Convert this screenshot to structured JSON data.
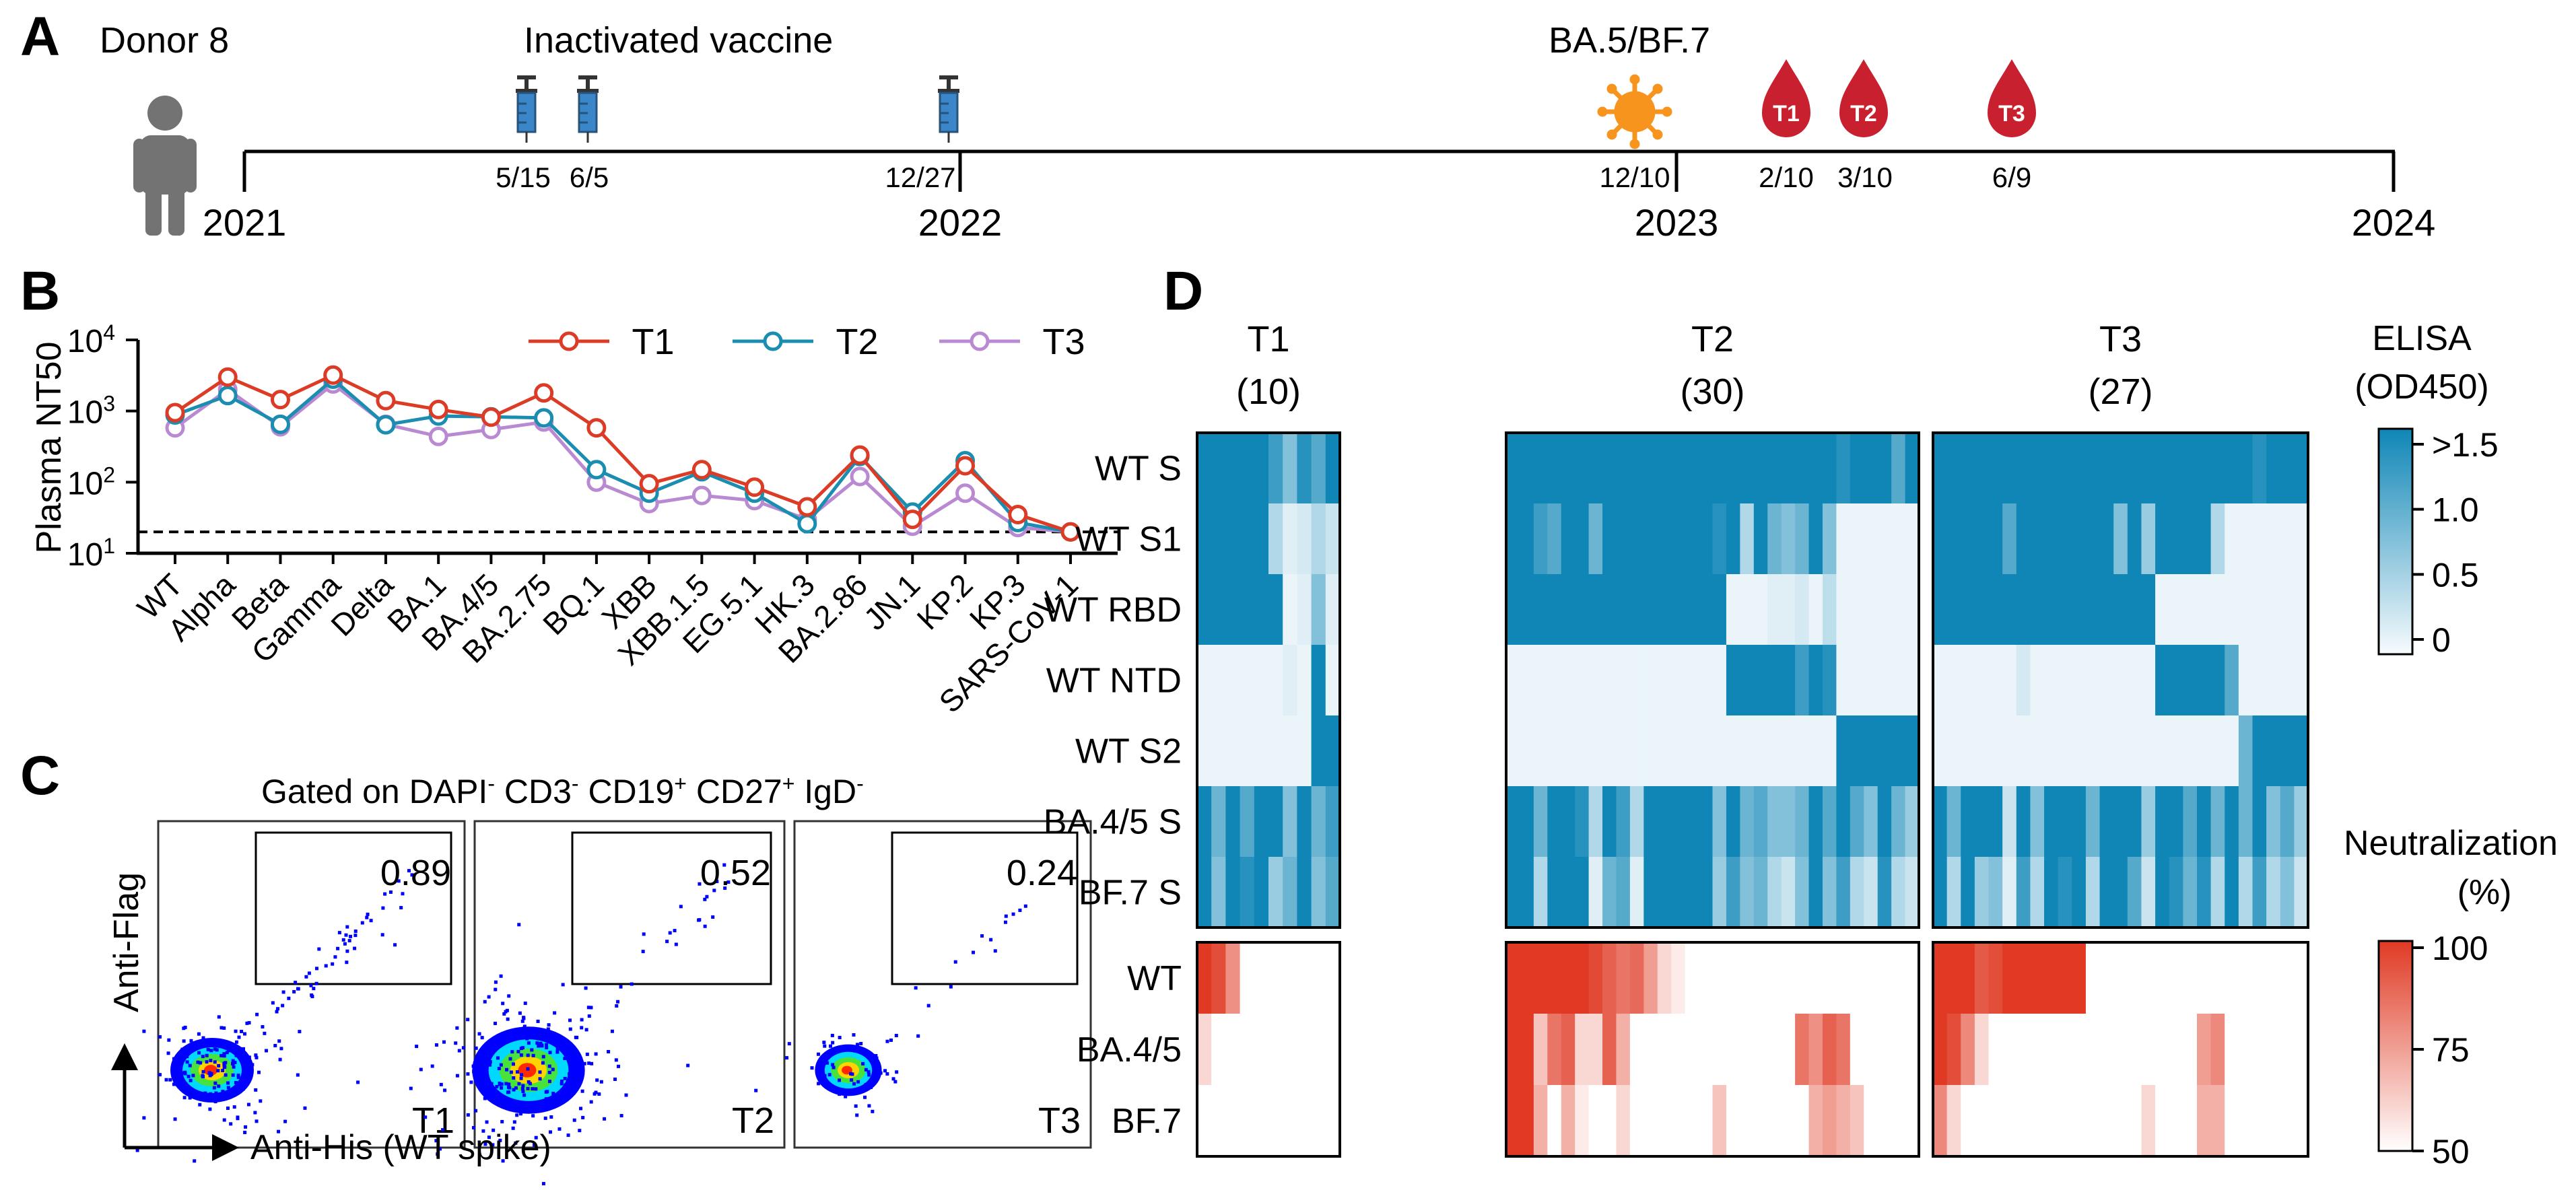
{
  "panels": {
    "a": "A",
    "b": "B",
    "c": "C",
    "d": "D"
  },
  "timeline": {
    "donor_label": "Donor 8",
    "vaccine_label": "Inactivated vaccine",
    "infection_label": "BA.5/BF.7",
    "years": [
      "2021",
      "2022",
      "2023",
      "2024"
    ],
    "vaccine_dates": [
      "5/15",
      "6/5",
      "12/27"
    ],
    "infection_date": "12/10",
    "blood_draws": [
      {
        "label": "T1",
        "date": "2/10"
      },
      {
        "label": "T2",
        "date": "3/10"
      },
      {
        "label": "T3",
        "date": "6/9"
      }
    ],
    "icons": {
      "person": "person-icon",
      "syringe": "syringe-icon",
      "virus": "virus-icon",
      "blood": "blood-drop-icon"
    },
    "colors": {
      "syringe": "#3a86c8",
      "virus": "#f7941d",
      "blood": "#c8202f"
    }
  },
  "chart_data": {
    "type": "line",
    "ylabel": "Plasma NT50",
    "yscale": "log",
    "ylim": [
      10,
      10000
    ],
    "ytick_bases": [
      "10",
      "10",
      "10",
      "10"
    ],
    "ytick_exps": [
      "1",
      "2",
      "3",
      "4"
    ],
    "detection_limit": 20,
    "categories": [
      "WT",
      "Alpha",
      "Beta",
      "Gamma",
      "Delta",
      "BA.1",
      "BA.4/5",
      "BA.2.75",
      "BQ.1",
      "XBB",
      "XBB.1.5",
      "EG.5.1",
      "HK.3",
      "BA.2.86",
      "JN.1",
      "KP.2",
      "KP.3",
      "SARS-CoV-1"
    ],
    "series": [
      {
        "name": "T1",
        "color": "#dc3b26",
        "values": [
          950,
          3000,
          1450,
          3200,
          1400,
          1050,
          820,
          1800,
          580,
          95,
          150,
          85,
          45,
          240,
          30,
          170,
          35,
          20
        ]
      },
      {
        "name": "T2",
        "color": "#1a8db0",
        "values": [
          880,
          1650,
          650,
          2800,
          640,
          850,
          830,
          800,
          150,
          70,
          140,
          70,
          26,
          230,
          38,
          200,
          27,
          20
        ]
      },
      {
        "name": "T3",
        "color": "#b98ad2",
        "values": [
          580,
          2000,
          600,
          2400,
          650,
          440,
          550,
          700,
          100,
          50,
          65,
          55,
          30,
          120,
          24,
          70,
          23,
          20
        ]
      }
    ]
  },
  "flow": {
    "title_parts": [
      "Gated on DAPI",
      "-",
      " CD3",
      "-",
      " CD19",
      "+",
      " CD27",
      "+",
      " IgD",
      "-"
    ],
    "ylabel": "Anti-Flag",
    "xlabel": "Anti-His (WT spike)",
    "plots": [
      {
        "label": "T1",
        "value": "0.89"
      },
      {
        "label": "T2",
        "value": "0.52"
      },
      {
        "label": "T3",
        "value": "0.24"
      }
    ]
  },
  "heatmap": {
    "groups": [
      {
        "label": "T1",
        "count": "(10)"
      },
      {
        "label": "T2",
        "count": "(30)"
      },
      {
        "label": "T3",
        "count": "(27)"
      }
    ],
    "elisa_rows": [
      "WT S",
      "WT S1",
      "WT RBD",
      "WT NTD",
      "WT S2",
      "BA.4/5 S",
      "BF.7 S"
    ],
    "neut_rows": [
      "WT",
      "BA.4/5",
      "BF.7"
    ],
    "elisa_legend": {
      "title1": "ELISA",
      "title2": "(OD450)",
      "ticks": [
        ">1.5",
        "1.0",
        "0.5",
        "0"
      ]
    },
    "neut_legend": {
      "title1": "Neutralization",
      "title2": "(%)",
      "ticks": [
        "100",
        "75",
        "50"
      ]
    },
    "colors": {
      "elisa_high": "#0f86b6",
      "elisa_low": "#f7fbfd",
      "neut_high": "#e03a24",
      "neut_low": "#ffffff"
    },
    "elisa_values": {
      "T1": [
        [
          1,
          1,
          1,
          1,
          1,
          0.8,
          0.5,
          0.9,
          0.7,
          1
        ],
        [
          1,
          1,
          1,
          1,
          1,
          0.3,
          0.1,
          0.15,
          0.3,
          0.2
        ],
        [
          1,
          1,
          1,
          1,
          1,
          1,
          0.05,
          0.1,
          0.5,
          0.1
        ],
        [
          0.05,
          0.05,
          0.05,
          0.05,
          0.05,
          0.05,
          0.1,
          0.05,
          1,
          0.05
        ],
        [
          0.05,
          0.05,
          0.05,
          0.05,
          0.05,
          0.05,
          0.05,
          0.05,
          1,
          1
        ],
        [
          1,
          0.6,
          1,
          0.7,
          1,
          1,
          0.5,
          1,
          0.6,
          0.8
        ],
        [
          1,
          0.5,
          1,
          0.9,
          1,
          0.4,
          0.6,
          1,
          0.5,
          0.7
        ]
      ],
      "T2": [
        [
          1,
          1,
          1,
          1,
          1,
          1,
          1,
          1,
          1,
          1,
          1,
          1,
          1,
          1,
          1,
          1,
          1,
          1,
          1,
          1,
          1,
          1,
          1,
          1,
          0.9,
          1,
          1,
          1,
          0.7,
          1
        ],
        [
          1,
          1,
          0.8,
          0.7,
          1,
          1,
          0.6,
          1,
          1,
          1,
          1,
          1,
          1,
          1,
          1,
          0.9,
          1,
          0.3,
          1,
          0.6,
          0.5,
          0.6,
          1,
          0.5,
          0.05,
          0.05,
          0.05,
          0.05,
          0.05,
          0.05
        ],
        [
          1,
          1,
          1,
          1,
          1,
          1,
          1,
          1,
          1,
          1,
          1,
          1,
          1,
          1,
          1,
          1,
          0.05,
          0.05,
          0.05,
          0.1,
          0.1,
          0.15,
          0.05,
          0.25,
          0.05,
          0.05,
          0.05,
          0.05,
          0.05,
          0.05
        ],
        [
          0.05,
          0.05,
          0.05,
          0.05,
          0.05,
          0.05,
          0.05,
          0.05,
          0.05,
          0.05,
          0.05,
          0.05,
          0.05,
          0.05,
          0.05,
          0.05,
          1,
          1,
          1,
          1,
          1,
          0.8,
          1,
          0.9,
          0.05,
          0.05,
          0.05,
          0.05,
          0.05,
          0.05
        ],
        [
          0.05,
          0.05,
          0.05,
          0.05,
          0.05,
          0.05,
          0.05,
          0.05,
          0.05,
          0.05,
          0.05,
          0.05,
          0.05,
          0.05,
          0.05,
          0.05,
          0.05,
          0.05,
          0.05,
          0.05,
          0.05,
          0.05,
          0.05,
          0.05,
          1,
          1,
          1,
          1,
          1,
          1
        ],
        [
          1,
          1,
          0.6,
          1,
          1,
          0.9,
          0.3,
          1,
          0.8,
          0.3,
          1,
          1,
          1,
          1,
          1,
          0.5,
          1,
          0.6,
          0.7,
          0.5,
          0.5,
          0.6,
          1,
          0.7,
          1,
          0.7,
          0.5,
          1,
          0.6,
          0.4
        ],
        [
          1,
          1,
          0.3,
          1,
          1,
          1,
          0.1,
          0.6,
          0.7,
          0.1,
          1,
          1,
          1,
          1,
          1,
          0.4,
          0.8,
          0.5,
          0.6,
          0.3,
          0.2,
          0.5,
          1,
          0.5,
          0.8,
          0.3,
          0.2,
          0.9,
          0.3,
          0.2
        ]
      ],
      "T3": [
        [
          1,
          1,
          1,
          1,
          1,
          1,
          1,
          1,
          1,
          1,
          1,
          1,
          1,
          1,
          1,
          1,
          1,
          1,
          1,
          1,
          1,
          1,
          1,
          0.9,
          1,
          1,
          1
        ],
        [
          1,
          1,
          1,
          1,
          1,
          0.7,
          1,
          1,
          1,
          1,
          1,
          1,
          1,
          0.5,
          1,
          0.4,
          1,
          1,
          1,
          1,
          0.3,
          0.05,
          0.05,
          0.05,
          0.05,
          0.05,
          0.05
        ],
        [
          1,
          1,
          1,
          1,
          1,
          1,
          1,
          1,
          1,
          1,
          1,
          1,
          1,
          1,
          1,
          1,
          0.05,
          0.05,
          0.05,
          0.05,
          0.05,
          0.05,
          0.05,
          0.05,
          0.05,
          0.05,
          0.05
        ],
        [
          0.05,
          0.05,
          0.05,
          0.05,
          0.05,
          0.05,
          0.15,
          0.05,
          0.05,
          0.05,
          0.05,
          0.05,
          0.05,
          0.05,
          0.05,
          0.05,
          1,
          1,
          1,
          1,
          1,
          0.7,
          0.05,
          0.05,
          0.05,
          0.05,
          0.05
        ],
        [
          0.05,
          0.05,
          0.05,
          0.05,
          0.05,
          0.05,
          0.05,
          0.05,
          0.05,
          0.05,
          0.05,
          0.05,
          0.05,
          0.05,
          0.05,
          0.05,
          0.05,
          0.05,
          0.05,
          0.05,
          0.05,
          0.05,
          0.6,
          1,
          1,
          1,
          1
        ],
        [
          1,
          0.6,
          1,
          1,
          1,
          0.2,
          1,
          0.5,
          1,
          1,
          1,
          0.6,
          1,
          1,
          1,
          0.4,
          1,
          1,
          0.7,
          1,
          0.6,
          1,
          0.6,
          1,
          0.5,
          0.7,
          0.4
        ],
        [
          1,
          0.3,
          1,
          0.4,
          0.5,
          0.1,
          0.8,
          0.3,
          1,
          0.9,
          1,
          0.3,
          1,
          1,
          0.7,
          0.2,
          1,
          0.9,
          0.6,
          0.9,
          0.3,
          1,
          0.3,
          0.8,
          0.3,
          0.5,
          0.2
        ]
      ]
    },
    "neut_values": {
      "T1": [
        [
          100,
          95,
          78,
          0,
          0,
          0,
          0,
          0,
          0,
          0
        ],
        [
          60,
          0,
          0,
          0,
          0,
          0,
          0,
          0,
          0,
          0
        ],
        [
          0,
          0,
          0,
          0,
          0,
          0,
          0,
          0,
          0,
          0
        ]
      ],
      "T2": [
        [
          100,
          100,
          100,
          100,
          100,
          100,
          96,
          90,
          85,
          88,
          75,
          60,
          55,
          0,
          0,
          0,
          0,
          0,
          0,
          0,
          0,
          0,
          0,
          0,
          0,
          0,
          0,
          0,
          0,
          0
        ],
        [
          100,
          100,
          65,
          85,
          90,
          60,
          60,
          90,
          70,
          0,
          0,
          0,
          0,
          0,
          0,
          0,
          0,
          0,
          0,
          0,
          0,
          85,
          78,
          90,
          85,
          0,
          0,
          0,
          0,
          0
        ],
        [
          100,
          100,
          70,
          0,
          70,
          55,
          0,
          0,
          60,
          0,
          0,
          0,
          0,
          0,
          0,
          65,
          0,
          0,
          0,
          0,
          0,
          0,
          70,
          75,
          70,
          65,
          0,
          0,
          0,
          0
        ]
      ],
      "T3": [
        [
          100,
          100,
          100,
          92,
          95,
          100,
          100,
          100,
          100,
          100,
          100,
          0,
          0,
          0,
          0,
          0,
          0,
          0,
          0,
          0,
          0,
          0,
          0,
          0,
          0,
          0,
          0
        ],
        [
          100,
          95,
          80,
          60,
          0,
          0,
          0,
          0,
          0,
          0,
          0,
          0,
          0,
          0,
          0,
          0,
          0,
          0,
          0,
          75,
          80,
          0,
          0,
          0,
          0,
          0,
          0
        ],
        [
          80,
          60,
          0,
          0,
          0,
          0,
          0,
          0,
          0,
          0,
          0,
          0,
          0,
          0,
          0,
          60,
          0,
          0,
          0,
          70,
          70,
          0,
          0,
          0,
          0,
          0,
          0
        ]
      ]
    }
  }
}
